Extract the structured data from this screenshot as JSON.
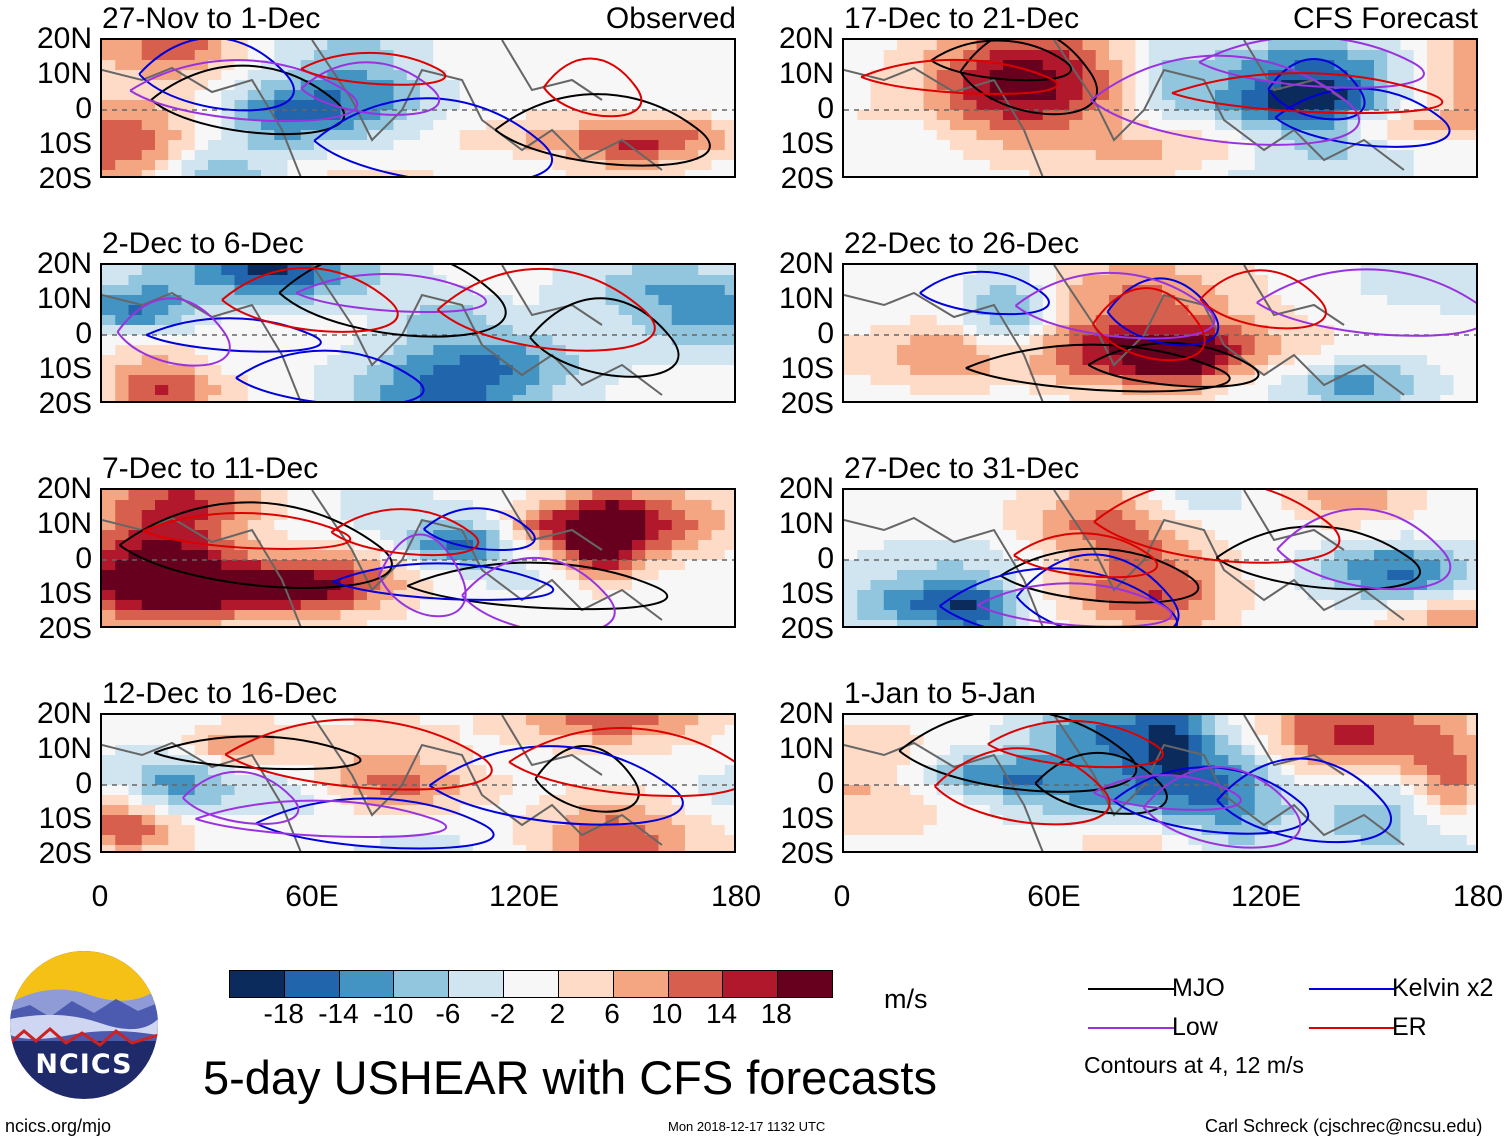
{
  "panels": [
    {
      "title": "27-Nov to 1-Dec",
      "right": "Observed",
      "seed": 1
    },
    {
      "title": "17-Dec to 21-Dec",
      "right": "CFS Forecast",
      "seed": 5
    },
    {
      "title": "2-Dec to 6-Dec",
      "right": "",
      "seed": 2
    },
    {
      "title": "22-Dec to 26-Dec",
      "right": "",
      "seed": 6
    },
    {
      "title": "7-Dec to 11-Dec",
      "right": "",
      "seed": 3
    },
    {
      "title": "27-Dec to 31-Dec",
      "right": "",
      "seed": 7
    },
    {
      "title": "12-Dec to 16-Dec",
      "right": "",
      "seed": 4
    },
    {
      "title": "1-Jan to 5-Jan",
      "right": "",
      "seed": 8
    }
  ],
  "lat_labels": [
    "20N",
    "10N",
    "0",
    "10S",
    "20S"
  ],
  "lon_labels": [
    "0",
    "60E",
    "120E",
    "180"
  ],
  "colorbar": {
    "colors": [
      "#0a2b5c",
      "#2166ac",
      "#4393c3",
      "#92c5de",
      "#d1e5f0",
      "#f7f7f7",
      "#fddbc7",
      "#f4a582",
      "#d6604d",
      "#b2182b",
      "#67001f"
    ],
    "labels": [
      "-18",
      "-14",
      "-10",
      "-6",
      "-2",
      "2",
      "6",
      "10",
      "14",
      "18"
    ],
    "units": "m/s"
  },
  "legend": {
    "items": [
      {
        "label": "MJO",
        "color": "#000000"
      },
      {
        "label": "Kelvin x2",
        "color": "#0000dd"
      },
      {
        "label": "Low",
        "color": "#9933dd"
      },
      {
        "label": "ER",
        "color": "#dd0000"
      }
    ],
    "note": "Contours at 4, 12 m/s"
  },
  "main_title": "5-day USHEAR with CFS forecasts",
  "logo_text": "NCICS",
  "footer": {
    "left": "ncics.org/mjo",
    "center": "Mon 2018-12-17 1132 UTC",
    "right": "Carl Schreck (cjschrec@ncsu.edu)"
  }
}
